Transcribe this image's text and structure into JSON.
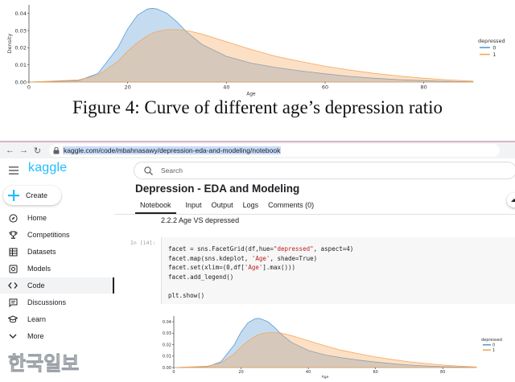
{
  "figure_caption": "Figure 4: Curve of different age’s depression ratio",
  "chart_data": [
    {
      "type": "area",
      "title": "",
      "xlabel": "Age",
      "ylabel": "Density",
      "xlim": [
        0,
        90
      ],
      "ylim": [
        0,
        0.045
      ],
      "xticks": [
        "0",
        "20",
        "40",
        "60",
        "80"
      ],
      "yticks": [
        "0.00",
        "0.01",
        "0.02",
        "0.03",
        "0.04"
      ],
      "legend_title": "depressed",
      "legend_position": "right",
      "x": [
        0,
        10,
        14,
        18,
        20,
        22,
        24,
        25,
        26,
        28,
        30,
        32,
        35,
        40,
        45,
        50,
        55,
        60,
        65,
        70,
        75,
        80,
        85,
        90
      ],
      "series": [
        {
          "name": "0",
          "color": "#5a9bd5",
          "values": [
            0.0,
            0.0008,
            0.005,
            0.02,
            0.031,
            0.039,
            0.0425,
            0.043,
            0.0425,
            0.04,
            0.035,
            0.029,
            0.022,
            0.015,
            0.011,
            0.0085,
            0.0065,
            0.0048,
            0.0033,
            0.0022,
            0.0014,
            0.0008,
            0.0004,
            0.0002
          ]
        },
        {
          "name": "1",
          "color": "#f5a55a",
          "values": [
            0.0,
            0.0012,
            0.004,
            0.012,
            0.018,
            0.023,
            0.027,
            0.0285,
            0.0295,
            0.0305,
            0.0305,
            0.03,
            0.028,
            0.0235,
            0.019,
            0.015,
            0.012,
            0.0092,
            0.007,
            0.005,
            0.0035,
            0.0022,
            0.0012,
            0.0005
          ]
        }
      ]
    },
    {
      "type": "area",
      "title": "",
      "xlabel": "Age",
      "ylabel": "",
      "xlim": [
        0,
        90
      ],
      "ylim": [
        0,
        0.045
      ],
      "xticks": [
        "0",
        "20",
        "40",
        "60",
        "80"
      ],
      "yticks": [
        "0.00",
        "0.01",
        "0.02",
        "0.03",
        "0.04"
      ],
      "legend_title": "depressed",
      "legend_position": "right",
      "x": [
        0,
        10,
        14,
        18,
        20,
        22,
        24,
        25,
        26,
        28,
        30,
        32,
        35,
        40,
        45,
        50,
        55,
        60,
        65,
        70,
        75,
        80,
        85,
        90
      ],
      "series": [
        {
          "name": "0",
          "color": "#5a9bd5",
          "values": [
            0.0,
            0.0008,
            0.005,
            0.02,
            0.031,
            0.039,
            0.0425,
            0.043,
            0.0425,
            0.04,
            0.035,
            0.029,
            0.022,
            0.015,
            0.011,
            0.0085,
            0.0065,
            0.0048,
            0.0033,
            0.0022,
            0.0014,
            0.0008,
            0.0004,
            0.0002
          ]
        },
        {
          "name": "1",
          "color": "#f5a55a",
          "values": [
            0.0,
            0.0012,
            0.004,
            0.012,
            0.018,
            0.023,
            0.027,
            0.0285,
            0.0295,
            0.0305,
            0.0305,
            0.03,
            0.028,
            0.0235,
            0.019,
            0.015,
            0.012,
            0.0092,
            0.007,
            0.005,
            0.0035,
            0.0022,
            0.0012,
            0.0005
          ]
        }
      ]
    }
  ],
  "browser": {
    "url": "kaggle.com/code/mbahnasawy/depression-eda-and-modeling/notebook",
    "nav_icons": [
      "back-icon",
      "forward-icon",
      "reload-icon",
      "lock-icon"
    ]
  },
  "kaggle": {
    "logo": "kaggle",
    "brand_color": "#20beff",
    "create_label": "Create",
    "nav": [
      {
        "label": "Home",
        "icon": "home-icon"
      },
      {
        "label": "Competitions",
        "icon": "trophy-icon"
      },
      {
        "label": "Datasets",
        "icon": "table-icon"
      },
      {
        "label": "Models",
        "icon": "models-icon"
      },
      {
        "label": "Code",
        "icon": "code-icon",
        "active": true
      },
      {
        "label": "Discussions",
        "icon": "discussions-icon"
      },
      {
        "label": "Learn",
        "icon": "learn-icon"
      },
      {
        "label": "More",
        "icon": "chevron-down-icon"
      }
    ],
    "search_placeholder": "Search",
    "notebook_title": "Depression - EDA and Modeling",
    "tabs": [
      "Notebook",
      "Input",
      "Output",
      "Logs",
      "Comments (0)"
    ],
    "section_heading": "2.2.2 Age VS depressed",
    "cell_label": "In [14]:",
    "code_lines": [
      [
        "facet = sns.FacetGrid(df,hue=",
        "\"depressed\"",
        ", aspect=4)"
      ],
      [
        "facet.map(sns.kdeplot, ",
        "'Age'",
        ", shade=True)"
      ],
      [
        "facet.set(xlim=(0,df[",
        "'Age'",
        "].max()))"
      ],
      [
        "facet.add_legend()",
        "",
        ""
      ],
      [
        "",
        "",
        ""
      ],
      [
        "plt.show()",
        "",
        ""
      ]
    ]
  },
  "watermark": "한국일보"
}
